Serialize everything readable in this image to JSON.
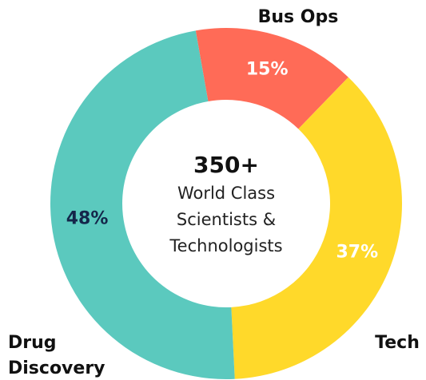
{
  "chart_data": {
    "type": "donut",
    "categories": [
      "Bus Ops",
      "Tech",
      "Drug Discovery"
    ],
    "values": [
      15,
      37,
      48
    ],
    "value_labels": [
      "15%",
      "37%",
      "48%"
    ],
    "colors": [
      "#ff6b57",
      "#ffd92a",
      "#5bc9be"
    ],
    "label_colors": [
      "#ffffff",
      "#ffffff",
      "#14264a"
    ],
    "start_angle": -10,
    "center_text": [
      "350+",
      "World Class",
      "Scientists &",
      "Technologists"
    ]
  }
}
